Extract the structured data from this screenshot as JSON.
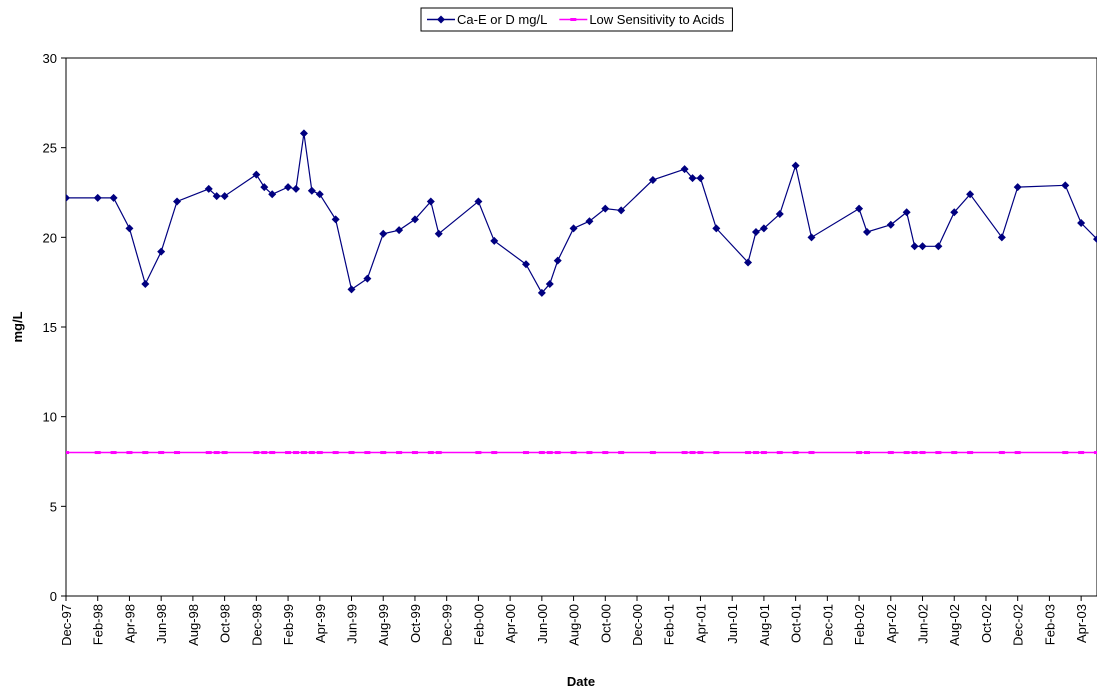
{
  "chart_data": {
    "type": "line",
    "x_label": "Date",
    "y_label": "mg/L",
    "x": [
      "1997-12",
      "1998-02",
      "1998-03",
      "1998-04",
      "1998-05",
      "1998-06",
      "1998-07",
      "1998-09",
      "1998-09",
      "1998-10",
      "1998-12",
      "1998-12",
      "1999-01",
      "1999-02",
      "1999-02",
      "1999-03",
      "1999-03",
      "1999-04",
      "1999-05",
      "1999-06",
      "1999-07",
      "1999-08",
      "1999-09",
      "1999-10",
      "1999-11",
      "1999-11",
      "2000-02",
      "2000-03",
      "2000-05",
      "2000-06",
      "2000-06",
      "2000-07",
      "2000-08",
      "2000-09",
      "2000-10",
      "2000-11",
      "2001-01",
      "2001-03",
      "2001-03",
      "2001-04",
      "2001-05",
      "2001-07",
      "2001-07",
      "2001-08",
      "2001-09",
      "2001-10",
      "2001-11",
      "2002-02",
      "2002-02",
      "2002-04",
      "2002-05",
      "2002-05",
      "2002-06",
      "2002-07",
      "2002-08",
      "2002-09",
      "2002-11",
      "2002-12",
      "2003-03",
      "2003-04",
      "2003-05"
    ],
    "series": [
      {
        "name": "Ca-E or D mg/L",
        "color": "#000080",
        "marker": "diamond",
        "values": [
          22.2,
          22.2,
          22.2,
          20.5,
          17.4,
          19.2,
          22.0,
          22.7,
          22.3,
          22.3,
          23.5,
          22.8,
          22.4,
          22.8,
          22.7,
          25.8,
          22.6,
          22.4,
          21.0,
          17.1,
          17.7,
          20.2,
          20.4,
          21.0,
          22.0,
          20.2,
          22.0,
          19.8,
          18.5,
          16.9,
          17.4,
          18.7,
          20.5,
          20.9,
          21.6,
          21.5,
          23.2,
          23.8,
          23.3,
          23.3,
          20.5,
          18.6,
          20.3,
          20.5,
          21.3,
          24.0,
          20.0,
          21.6,
          20.3,
          20.7,
          21.4,
          19.5,
          19.5,
          19.5,
          21.4,
          22.4,
          20.0,
          22.8,
          22.9,
          20.8,
          19.9
        ]
      },
      {
        "name": "Low Sensitivity to Acids",
        "color": "#ff00ff",
        "marker": "square",
        "values": [
          8,
          8,
          8,
          8,
          8,
          8,
          8,
          8,
          8,
          8,
          8,
          8,
          8,
          8,
          8,
          8,
          8,
          8,
          8,
          8,
          8,
          8,
          8,
          8,
          8,
          8,
          8,
          8,
          8,
          8,
          8,
          8,
          8,
          8,
          8,
          8,
          8,
          8,
          8,
          8,
          8,
          8,
          8,
          8,
          8,
          8,
          8,
          8,
          8,
          8,
          8,
          8,
          8,
          8,
          8,
          8,
          8,
          8,
          8,
          8,
          8
        ]
      }
    ],
    "xlim": [
      "1997-12",
      "2003-05"
    ],
    "xticks": [
      {
        "value": "1997-12",
        "label": "Dec-97"
      },
      {
        "value": "1998-02",
        "label": "Feb-98"
      },
      {
        "value": "1998-04",
        "label": "Apr-98"
      },
      {
        "value": "1998-06",
        "label": "Jun-98"
      },
      {
        "value": "1998-08",
        "label": "Aug-98"
      },
      {
        "value": "1998-10",
        "label": "Oct-98"
      },
      {
        "value": "1998-12",
        "label": "Dec-98"
      },
      {
        "value": "1999-02",
        "label": "Feb-99"
      },
      {
        "value": "1999-04",
        "label": "Apr-99"
      },
      {
        "value": "1999-06",
        "label": "Jun-99"
      },
      {
        "value": "1999-08",
        "label": "Aug-99"
      },
      {
        "value": "1999-10",
        "label": "Oct-99"
      },
      {
        "value": "1999-12",
        "label": "Dec-99"
      },
      {
        "value": "2000-02",
        "label": "Feb-00"
      },
      {
        "value": "2000-04",
        "label": "Apr-00"
      },
      {
        "value": "2000-06",
        "label": "Jun-00"
      },
      {
        "value": "2000-08",
        "label": "Aug-00"
      },
      {
        "value": "2000-10",
        "label": "Oct-00"
      },
      {
        "value": "2000-12",
        "label": "Dec-00"
      },
      {
        "value": "2001-02",
        "label": "Feb-01"
      },
      {
        "value": "2001-04",
        "label": "Apr-01"
      },
      {
        "value": "2001-06",
        "label": "Jun-01"
      },
      {
        "value": "2001-08",
        "label": "Aug-01"
      },
      {
        "value": "2001-10",
        "label": "Oct-01"
      },
      {
        "value": "2001-12",
        "label": "Dec-01"
      },
      {
        "value": "2002-02",
        "label": "Feb-02"
      },
      {
        "value": "2002-04",
        "label": "Apr-02"
      },
      {
        "value": "2002-06",
        "label": "Jun-02"
      },
      {
        "value": "2002-08",
        "label": "Aug-02"
      },
      {
        "value": "2002-10",
        "label": "Oct-02"
      },
      {
        "value": "2002-12",
        "label": "Dec-02"
      },
      {
        "value": "2003-02",
        "label": "Feb-03"
      },
      {
        "value": "2003-04",
        "label": "Apr-03"
      }
    ],
    "ylim": [
      0,
      30
    ],
    "yticks": [
      0,
      5,
      10,
      15,
      20,
      25,
      30
    ],
    "grid": false,
    "legend": "top"
  }
}
